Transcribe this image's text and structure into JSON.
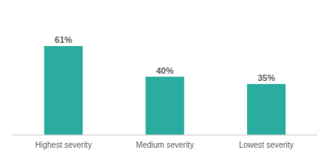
{
  "chart_data": {
    "type": "bar",
    "categories": [
      "Highest severity",
      "Medium severity",
      "Lowest severity"
    ],
    "values": [
      61,
      40,
      35
    ],
    "value_labels": [
      "61%",
      "40%",
      "35%"
    ],
    "color": "#2aada0",
    "ylim": [
      0,
      85
    ],
    "data_labels": true,
    "tick_labels": "x"
  }
}
